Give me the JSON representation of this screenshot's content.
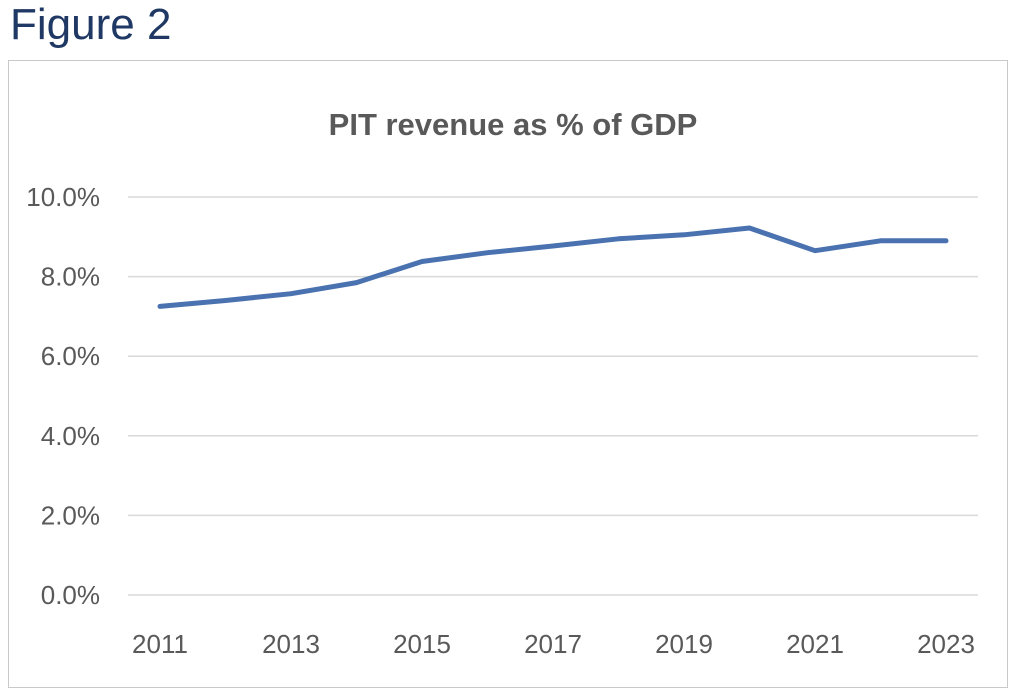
{
  "figure_label": "Figure 2",
  "chart_data": {
    "type": "line",
    "title": "PIT revenue as % of GDP",
    "xlabel": "",
    "ylabel": "",
    "x": [
      2011,
      2012,
      2013,
      2014,
      2015,
      2016,
      2017,
      2018,
      2019,
      2020,
      2021,
      2022,
      2023
    ],
    "x_tick_labels": [
      "2011",
      "2013",
      "2015",
      "2017",
      "2019",
      "2021",
      "2023"
    ],
    "y_tick_labels": [
      "0.0%",
      "2.0%",
      "4.0%",
      "6.0%",
      "8.0%",
      "10.0%"
    ],
    "ylim": [
      0,
      10
    ],
    "grid": true,
    "legend": "none",
    "series": [
      {
        "values": [
          7.25,
          7.4,
          7.57,
          7.85,
          8.38,
          8.6,
          8.77,
          8.95,
          9.05,
          9.22,
          8.65,
          8.9,
          8.9
        ],
        "color": "#4a72b0"
      }
    ]
  }
}
